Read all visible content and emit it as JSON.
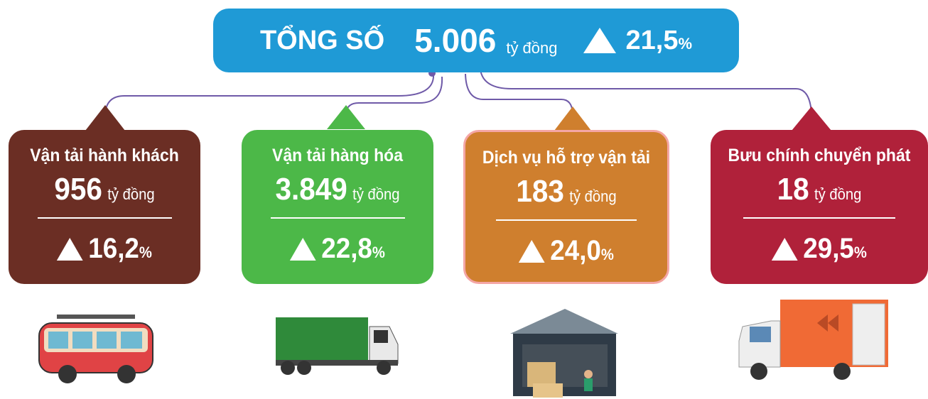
{
  "header": {
    "label": "TỔNG SỐ",
    "value": "5.006",
    "unit": "tỷ đồng",
    "change": "21,5",
    "change_unit": "%"
  },
  "cards": [
    {
      "title": "Vận tải hành khách",
      "value": "956",
      "unit": "tỷ đồng",
      "change": "16,2",
      "change_unit": "%"
    },
    {
      "title": "Vận tải hàng hóa",
      "value": "3.849",
      "unit": "tỷ đồng",
      "change": "22,8",
      "change_unit": "%"
    },
    {
      "title": "Dịch vụ hỗ trợ vận tải",
      "value": "183",
      "unit": "tỷ đồng",
      "change": "24,0",
      "change_unit": "%"
    },
    {
      "title": "Bưu chính chuyển phát",
      "value": "18",
      "unit": "tỷ đồng",
      "change": "29,5",
      "change_unit": "%"
    }
  ]
}
